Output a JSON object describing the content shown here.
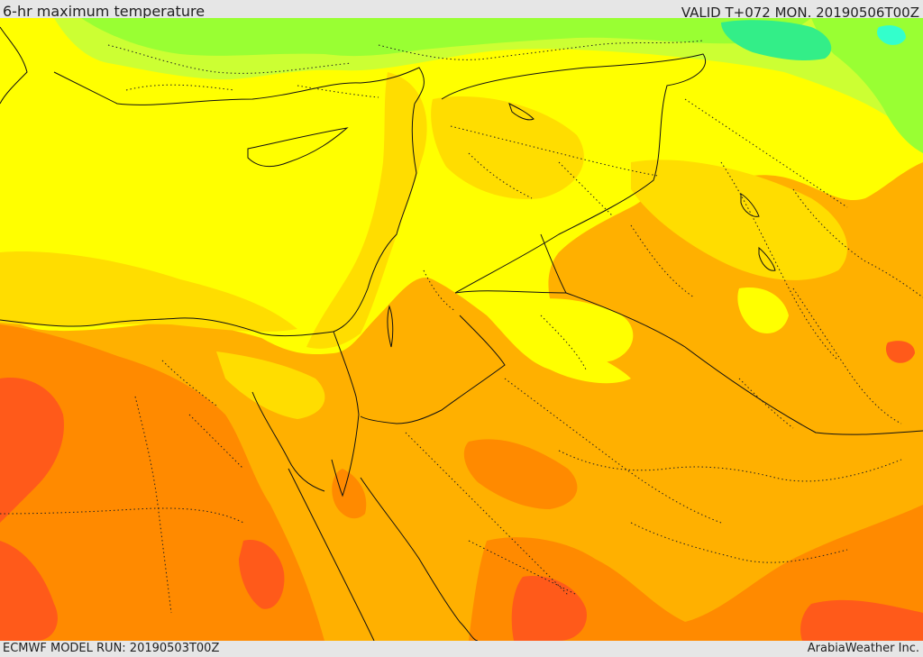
{
  "header": {
    "title": "6-hr maximum temperature",
    "valid": "VALID T+072 MON. 20190506T00Z"
  },
  "footer": {
    "model_run": "ECMWF MODEL RUN: 20190503T00Z",
    "credit": "ArabiaWeather Inc."
  },
  "palette": {
    "green_light": "#ccff33",
    "green": "#99ff33",
    "cyan": "#33ff99",
    "yellow": "#ffff00",
    "gold": "#ffdd00",
    "amber": "#ffb000",
    "orange": "#ff8a00",
    "red_orange": "#ff5a1a"
  }
}
